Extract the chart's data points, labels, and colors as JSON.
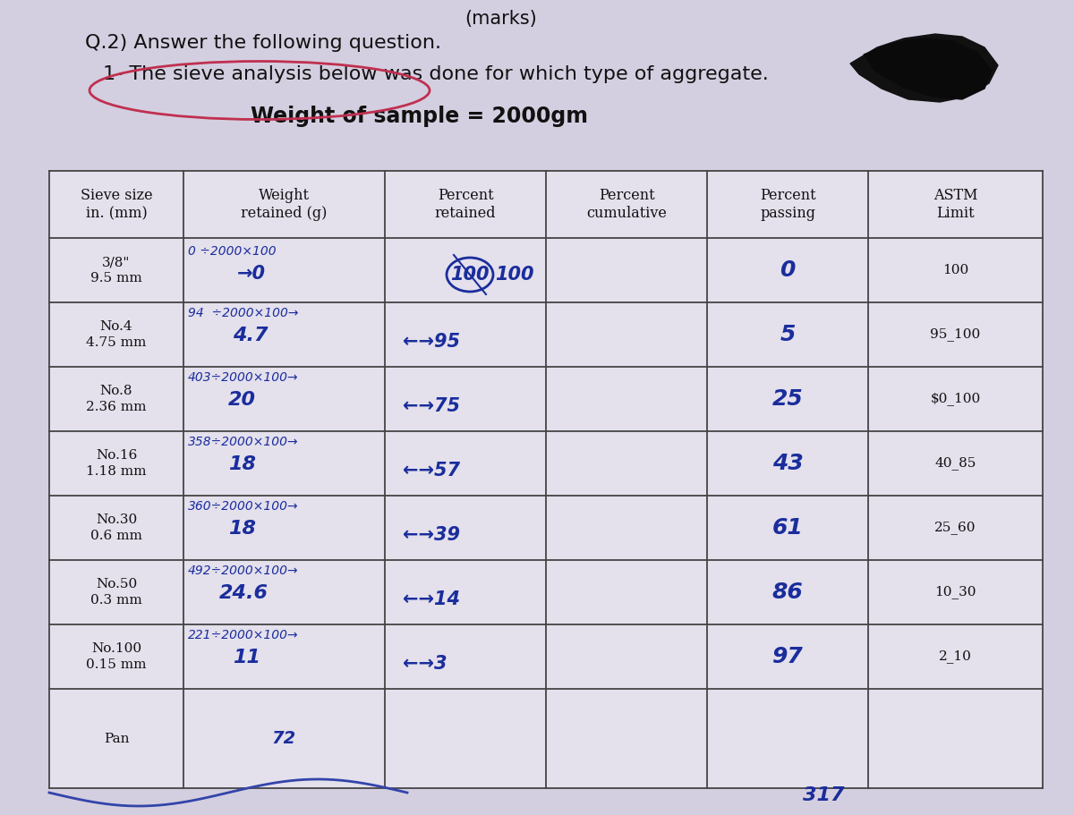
{
  "title_line1": "Q.2) Answer the following question.",
  "title_line2": "1- The sieve analysis below was done for which type of aggregate.",
  "title_line3": "Weight of sample = 2000gm",
  "bg_color": "#cdc8d8",
  "table_bg": "#e0dce8",
  "headers": [
    "Sieve size\nin. (mm)",
    "Weight\nretained (g)",
    "Percent\nretained",
    "Percent\ncumulative",
    "Percent\npassing",
    "ASTM\nLimit"
  ],
  "sieve_labels": [
    "3/8\"\n9.5 mm",
    "No.4\n4.75 mm",
    "No.8\n2.36 mm",
    "No.16\n1.18 mm",
    "No.30\n0.6 mm",
    "No.50\n0.3 mm",
    "No.100\n0.15 mm",
    "Pan"
  ],
  "astm_vals": [
    "100",
    "95_100",
    "$0_100",
    "40_85",
    "25_60",
    "10_30",
    "2_10",
    ""
  ],
  "hw_color": "#1a2d9c",
  "circle_color": "#c03050",
  "scribble_color": "#111111",
  "bottom_note": "317"
}
